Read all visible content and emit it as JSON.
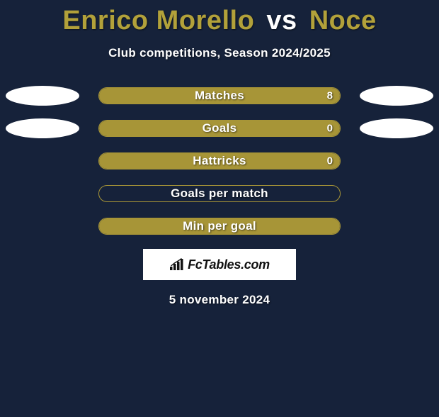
{
  "background_color": "#16223a",
  "title": {
    "player1": "Enrico Morello",
    "vs": "vs",
    "player2": "Noce",
    "player1_color": "#b2a13a",
    "vs_color": "#ffffff",
    "player2_color": "#b2a13a",
    "fontsize": 38
  },
  "subtitle": {
    "text": "Club competitions, Season 2024/2025",
    "color": "#ffffff",
    "fontsize": 17
  },
  "rows": [
    {
      "label": "Matches",
      "left_val": "",
      "right_val": "8",
      "fill_pct": 100,
      "fill_color": "#a79537",
      "border_color": "#a79537",
      "show_left_ellipse": true,
      "show_right_ellipse": true,
      "ellipse_color": "#ffffff"
    },
    {
      "label": "Goals",
      "left_val": "",
      "right_val": "0",
      "fill_pct": 100,
      "fill_color": "#a79537",
      "border_color": "#a79537",
      "show_left_ellipse": true,
      "show_right_ellipse": true,
      "ellipse_color": "#ffffff"
    },
    {
      "label": "Hattricks",
      "left_val": "",
      "right_val": "0",
      "fill_pct": 100,
      "fill_color": "#a79537",
      "border_color": "#a79537",
      "show_left_ellipse": false,
      "show_right_ellipse": false,
      "ellipse_color": "#ffffff"
    },
    {
      "label": "Goals per match",
      "left_val": "",
      "right_val": "",
      "fill_pct": 0,
      "fill_color": "#a79537",
      "border_color": "#a79537",
      "show_left_ellipse": false,
      "show_right_ellipse": false,
      "ellipse_color": "#ffffff"
    },
    {
      "label": "Min per goal",
      "left_val": "",
      "right_val": "",
      "fill_pct": 100,
      "fill_color": "#a79537",
      "border_color": "#a79537",
      "show_left_ellipse": false,
      "show_right_ellipse": false,
      "ellipse_color": "#ffffff"
    }
  ],
  "bar": {
    "outer_width": 342,
    "outer_height": 24,
    "border_radius": 12,
    "label_fontsize": 17,
    "val_fontsize": 15,
    "text_color": "#ffffff"
  },
  "ellipse": {
    "width": 104,
    "height": 28
  },
  "brand": {
    "text": "FcTables.com",
    "box_bg": "#ffffff",
    "text_color": "#111111",
    "icon_color": "#111111"
  },
  "date": {
    "text": "5 november 2024",
    "color": "#ffffff",
    "fontsize": 17
  }
}
